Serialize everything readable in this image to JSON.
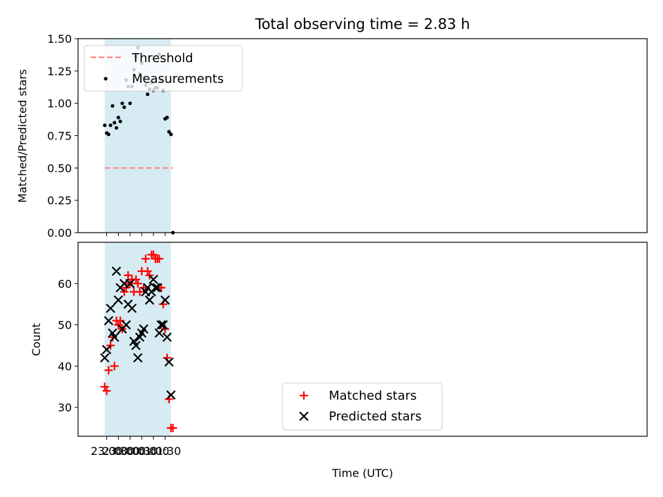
{
  "figure": {
    "title": "Total observing time = 2.83 h"
  },
  "chart_data": [
    {
      "type": "scatter",
      "panel": "top",
      "ylabel": "Matched/Predicted stars",
      "ylim": [
        0,
        1.5
      ],
      "yticks": [
        "0.00",
        "0.25",
        "0.50",
        "0.75",
        "1.00",
        "1.25",
        "1.50"
      ],
      "xlim_minutes": [
        -13.5,
        1447
      ],
      "threshold": {
        "name": "Threshold",
        "value": 0.5,
        "color": "#ff7f7f",
        "style": "dashed",
        "x_start": "22:55",
        "x_end": "01:50"
      },
      "observing_window": {
        "start": "22:55",
        "end": "01:45",
        "color": "#add8e6"
      },
      "series": [
        {
          "name": "Measurements",
          "color": "#000000",
          "marker": "dot",
          "x": [
            "22:55",
            "23:00",
            "23:05",
            "23:10",
            "23:15",
            "23:20",
            "23:25",
            "23:30",
            "23:35",
            "23:40",
            "23:45",
            "23:50",
            "23:55",
            "00:00",
            "00:05",
            "00:10",
            "00:15",
            "00:20",
            "00:25",
            "00:30",
            "00:35",
            "00:40",
            "00:45",
            "00:50",
            "00:55",
            "01:00",
            "01:05",
            "01:10",
            "01:15",
            "01:20",
            "01:25",
            "01:30",
            "01:35",
            "01:40",
            "01:45",
            "01:50"
          ],
          "y": [
            0.83,
            0.77,
            0.76,
            0.83,
            0.98,
            0.85,
            0.81,
            0.89,
            0.86,
            1.0,
            0.97,
            1.18,
            1.13,
            1.0,
            1.13,
            1.26,
            1.36,
            1.43,
            1.23,
            1.31,
            1.2,
            1.14,
            1.07,
            1.11,
            1.16,
            1.1,
            1.12,
            1.12,
            1.38,
            1.18,
            1.1,
            0.88,
            0.89,
            0.78,
            0.76,
            0.0
          ]
        }
      ],
      "legend": "top-left"
    },
    {
      "type": "scatter",
      "panel": "bottom",
      "xlabel": "Time (UTC)",
      "ylabel": "Count",
      "ylim": [
        23,
        70
      ],
      "yticks": [
        "30",
        "40",
        "50",
        "60"
      ],
      "xticks": [
        "23:00",
        "23:30",
        "00:00",
        "00:30",
        "01:00",
        "01:30"
      ],
      "observing_window": {
        "start": "22:55",
        "end": "01:45",
        "color": "#add8e6"
      },
      "series": [
        {
          "name": "Matched stars",
          "color": "#ff0000",
          "marker": "plus",
          "x": [
            "22:55",
            "23:00",
            "23:05",
            "23:10",
            "23:15",
            "23:20",
            "23:25",
            "23:30",
            "23:35",
            "23:40",
            "23:45",
            "23:50",
            "23:55",
            "00:00",
            "00:05",
            "00:10",
            "00:15",
            "00:20",
            "00:25",
            "00:30",
            "00:35",
            "00:40",
            "00:45",
            "00:50",
            "00:55",
            "01:00",
            "01:05",
            "01:10",
            "01:15",
            "01:20",
            "01:25",
            "01:30",
            "01:35",
            "01:40",
            "01:45",
            "01:50"
          ],
          "y": [
            35,
            34,
            39,
            45,
            47,
            40,
            51,
            50,
            51,
            49,
            58,
            59,
            62,
            60,
            61,
            58,
            61,
            60,
            58,
            63,
            59,
            66,
            63,
            62,
            67,
            67,
            66,
            66,
            66,
            59,
            55,
            49,
            42,
            32,
            25,
            25
          ]
        },
        {
          "name": "Predicted stars",
          "color": "#000000",
          "marker": "x",
          "x": [
            "22:55",
            "23:00",
            "23:05",
            "23:10",
            "23:15",
            "23:20",
            "23:25",
            "23:30",
            "23:35",
            "23:40",
            "23:45",
            "23:50",
            "23:55",
            "00:00",
            "00:05",
            "00:10",
            "00:15",
            "00:20",
            "00:25",
            "00:30",
            "00:35",
            "00:40",
            "00:45",
            "00:50",
            "00:55",
            "01:00",
            "01:05",
            "01:10",
            "01:15",
            "01:20",
            "01:25",
            "01:30",
            "01:35",
            "01:40",
            "01:45"
          ],
          "y": [
            42,
            44,
            51,
            54,
            48,
            47,
            63,
            56,
            59,
            49,
            60,
            50,
            55,
            60,
            54,
            46,
            45,
            42,
            47,
            48,
            49,
            58,
            59,
            56,
            58,
            61,
            59,
            59,
            48,
            50,
            50,
            56,
            47,
            41,
            33
          ]
        }
      ],
      "legend": "lower-center"
    }
  ]
}
